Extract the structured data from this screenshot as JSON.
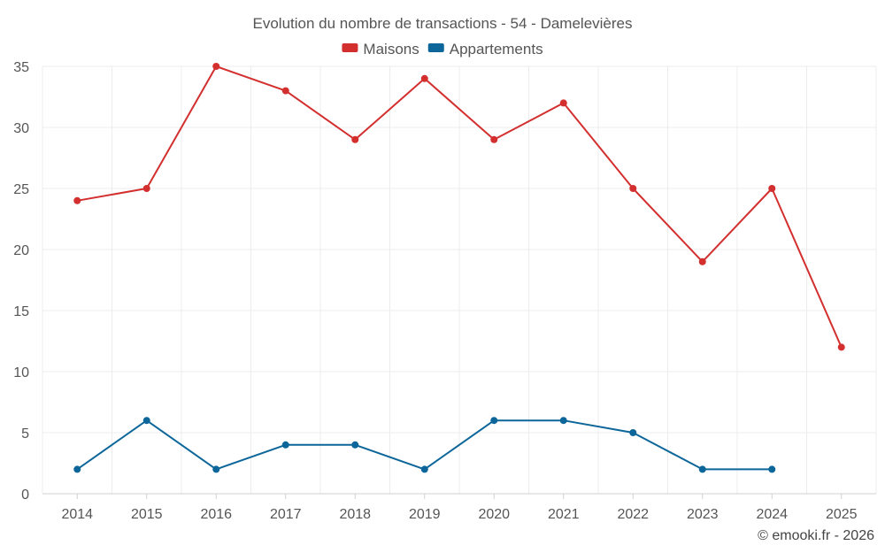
{
  "chart_data": {
    "type": "line",
    "title": "Evolution du nombre de transactions - 54 - Damelevières",
    "categories": [
      "2014",
      "2015",
      "2016",
      "2017",
      "2018",
      "2019",
      "2020",
      "2021",
      "2022",
      "2023",
      "2024",
      "2025"
    ],
    "series": [
      {
        "name": "Maisons",
        "color": "#d32f2f",
        "values": [
          24,
          25,
          35,
          33,
          29,
          34,
          29,
          32,
          25,
          19,
          25,
          12
        ]
      },
      {
        "name": "Appartements",
        "color": "#0d6699",
        "values": [
          2,
          6,
          2,
          4,
          4,
          2,
          6,
          6,
          5,
          2,
          2,
          null
        ]
      }
    ],
    "ylim": [
      0,
      35
    ],
    "yticks": [
      0,
      5,
      10,
      15,
      20,
      25,
      30,
      35
    ],
    "xlabel": "",
    "ylabel": "",
    "grid": true,
    "legend": "top-center",
    "credit": "© emooki.fr - 2026"
  }
}
